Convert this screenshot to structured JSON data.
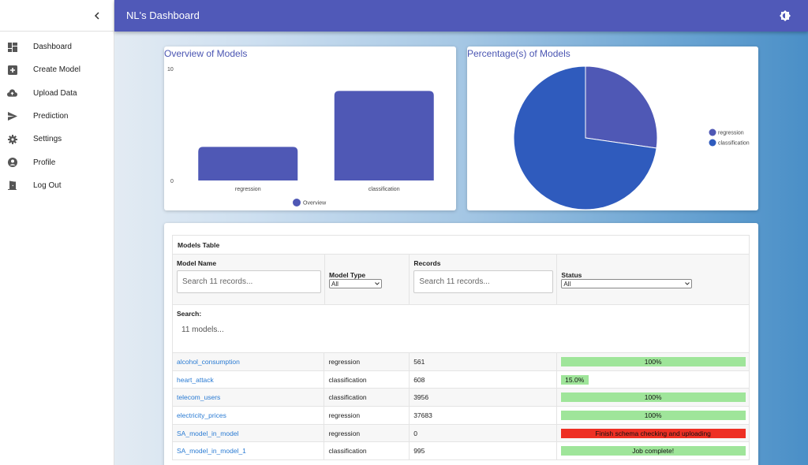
{
  "sidebar": {
    "items": [
      {
        "label": "Dashboard",
        "icon": "dashboard-icon"
      },
      {
        "label": "Create Model",
        "icon": "add-box-icon"
      },
      {
        "label": "Upload Data",
        "icon": "cloud-upload-icon"
      },
      {
        "label": "Prediction",
        "icon": "send-icon"
      },
      {
        "label": "Settings",
        "icon": "gear-icon"
      },
      {
        "label": "Profile",
        "icon": "account-circle-icon"
      },
      {
        "label": "Log Out",
        "icon": "logout-door-icon"
      }
    ]
  },
  "header": {
    "title": "NL's Dashboard"
  },
  "colors": {
    "header": "#5059b8",
    "bar": "#4f58b5",
    "pie_regression": "#4f58b5",
    "pie_classification": "#2f5bbd",
    "status_done": "#9fe59a",
    "status_error": "#ee3024"
  },
  "overview": {
    "title": "Overview of Models",
    "chart_data": {
      "type": "bar",
      "categories": [
        "regression",
        "classification"
      ],
      "values": [
        3,
        8
      ],
      "ylim": [
        0,
        10
      ],
      "yticks": [
        "0",
        "10"
      ],
      "legend": "Overview",
      "legend_position": "bottom"
    }
  },
  "percentage": {
    "title": "Percentage(s) of Models",
    "chart_data": {
      "type": "pie",
      "labels": [
        "regression",
        "classification"
      ],
      "values": [
        3,
        8
      ],
      "legend_position": "right"
    }
  },
  "table": {
    "caption": "Models Table",
    "headers": {
      "name": "Model Name",
      "type": "Model Type",
      "records": "Records",
      "status": "Status"
    },
    "name_placeholder": "Search 11 records...",
    "records_placeholder": "Search 11 records...",
    "type_selected": "All",
    "status_selected": "All",
    "search_label": "Search:",
    "search_placeholder": "11 models...",
    "rows": [
      {
        "name": "alcohol_consumption",
        "type": "regression",
        "records": "561",
        "status": "100%",
        "progress": 100,
        "state": "done"
      },
      {
        "name": "heart_attack",
        "type": "classification",
        "records": "608",
        "status": "15.0%",
        "progress": 15,
        "state": "done"
      },
      {
        "name": "telecom_users",
        "type": "classification",
        "records": "3956",
        "status": "100%",
        "progress": 100,
        "state": "done"
      },
      {
        "name": "electricity_prices",
        "type": "regression",
        "records": "37683",
        "status": "100%",
        "progress": 100,
        "state": "done"
      },
      {
        "name": "SA_model_in_model",
        "type": "regression",
        "records": "0",
        "status": "Finish schema checking and uploading",
        "progress": 100,
        "state": "error"
      },
      {
        "name": "SA_model_in_model_1",
        "type": "classification",
        "records": "995",
        "status": "Job complete!",
        "progress": 100,
        "state": "done"
      }
    ]
  }
}
